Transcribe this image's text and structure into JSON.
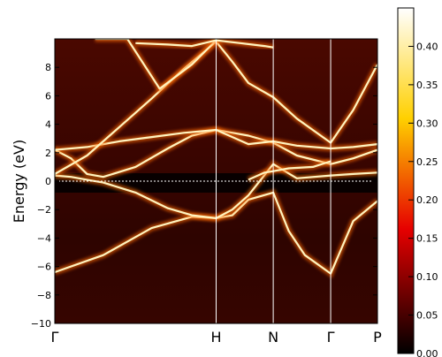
{
  "chart_data": {
    "type": "heatmap",
    "title": "",
    "xlabel": "",
    "ylabel": "Energy (eV)",
    "ylim": [
      -10,
      10
    ],
    "y_ticks": [
      "−10",
      "−8",
      "−6",
      "−4",
      "−2",
      "0",
      "2",
      "4",
      "6",
      "8"
    ],
    "y_tick_values": [
      -10,
      -8,
      -6,
      -4,
      -2,
      0,
      2,
      4,
      6,
      8
    ],
    "x_ticks": [
      "Γ",
      "H",
      "N",
      "Γ",
      "P"
    ],
    "x_tick_values": [
      0,
      1.0,
      1.354,
      1.71,
      2.0
    ],
    "vertical_lines_at": [
      1.0,
      1.354,
      1.71
    ],
    "fermi_level": 0,
    "colormap": "hot",
    "colorbar": {
      "range": [
        0,
        0.45
      ],
      "ticks": [
        "0.00",
        "0.05",
        "0.10",
        "0.15",
        "0.20",
        "0.25",
        "0.30",
        "0.35",
        "0.40"
      ],
      "tick_values": [
        0,
        0.05,
        0.1,
        0.15,
        0.2,
        0.25,
        0.3,
        0.35,
        0.4
      ]
    },
    "bands": [
      {
        "k": [
          0,
          0.3,
          0.6,
          0.85,
          1.0,
          1.1,
          1.2,
          1.354,
          1.45,
          1.55,
          1.71,
          1.85,
          2.0
        ],
        "E": [
          -6.4,
          -5.2,
          -3.3,
          -2.5,
          -2.6,
          -2.4,
          -1.3,
          -0.8,
          -3.5,
          -5.2,
          -6.5,
          -2.8,
          -1.4
        ]
      },
      {
        "k": [
          0,
          0.1,
          0.2,
          0.3,
          0.5,
          0.7,
          0.85,
          1.0,
          1.1,
          1.2,
          1.354,
          1.5,
          1.71,
          1.85,
          2.0
        ],
        "E": [
          0.4,
          0.3,
          0.1,
          -0.1,
          -0.8,
          -1.9,
          -2.4,
          -2.6,
          -2.0,
          -1.0,
          1.2,
          0.2,
          0.4,
          0.5,
          0.6
        ]
      },
      {
        "k": [
          0,
          0.1,
          0.2,
          0.3,
          0.5,
          0.7,
          0.85,
          1.0,
          1.2,
          1.354,
          1.5,
          1.71,
          1.85,
          2.0
        ],
        "E": [
          2.2,
          1.6,
          0.5,
          0.3,
          1.0,
          2.3,
          3.2,
          3.6,
          3.2,
          2.7,
          1.8,
          1.2,
          1.6,
          2.2
        ]
      },
      {
        "k": [
          0,
          0.2,
          0.4,
          0.6,
          0.8,
          1.0,
          1.2,
          1.354,
          1.5,
          1.71,
          1.85,
          2.0
        ],
        "E": [
          2.2,
          2.4,
          2.8,
          3.1,
          3.4,
          3.6,
          2.6,
          2.8,
          2.5,
          2.3,
          2.4,
          2.6
        ]
      },
      {
        "k": [
          0,
          0.2,
          0.4,
          0.6,
          0.8,
          1.0,
          1.1,
          1.2,
          1.354,
          1.5,
          1.71,
          1.85,
          2.0
        ],
        "E": [
          0.5,
          1.8,
          3.8,
          5.8,
          7.9,
          9.8,
          8.4,
          6.9,
          5.9,
          4.4,
          2.7,
          5.0,
          8.2
        ]
      },
      {
        "k": [
          0.25,
          0.45,
          0.65,
          0.85,
          1.0
        ],
        "E": [
          10,
          10,
          6.5,
          8.2,
          9.9
        ]
      },
      {
        "k": [
          0.5,
          0.7,
          0.85,
          1.0,
          1.15,
          1.3,
          1.354
        ],
        "E": [
          9.7,
          9.6,
          9.5,
          9.9,
          9.7,
          9.5,
          9.4
        ]
      },
      {
        "k": [
          1.2,
          1.3,
          1.354,
          1.45,
          1.6,
          1.71
        ],
        "E": [
          0.1,
          0.6,
          0.7,
          0.9,
          1.0,
          1.4
        ]
      }
    ]
  }
}
